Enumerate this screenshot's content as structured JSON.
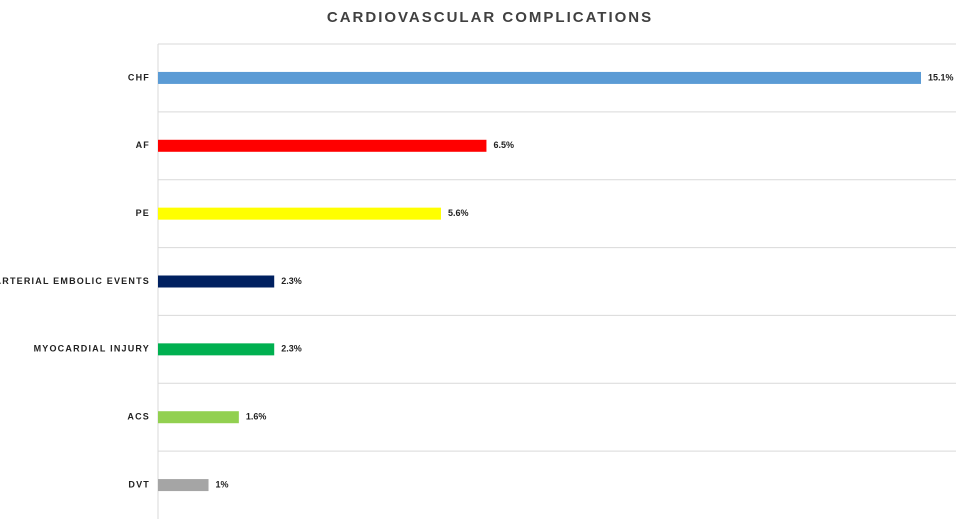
{
  "chart_data": {
    "type": "bar",
    "orientation": "horizontal",
    "title": "CARDIOVASCULAR COMPLICATIONS",
    "categories": [
      "CHF",
      "AF",
      "PE",
      "ARTERIAL EMBOLIC EVENTS",
      "MYOCARDIAL INJURY",
      "ACS",
      "DVT"
    ],
    "values": [
      15.1,
      6.5,
      5.6,
      2.3,
      2.3,
      1.6,
      1
    ],
    "value_labels": [
      "15.1%",
      "6.5%",
      "5.6%",
      "2.3%",
      "2.3%",
      "1.6%",
      "1%"
    ],
    "colors": [
      "#5b9bd5",
      "#ff0000",
      "#ffff00",
      "#002060",
      "#00b050",
      "#92d050",
      "#a5a5a5"
    ],
    "grid": true
  }
}
